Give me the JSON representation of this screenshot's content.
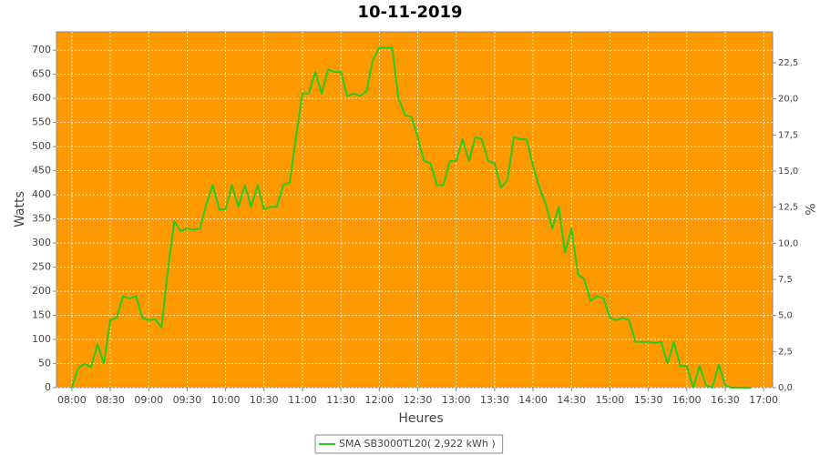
{
  "chart_data": {
    "type": "line",
    "title": "10-11-2019",
    "x_label": "Heures",
    "y_label": "Watts",
    "y2_label": "%",
    "x": [
      "08:00",
      "08:05",
      "08:10",
      "08:15",
      "08:20",
      "08:25",
      "08:30",
      "08:35",
      "08:40",
      "08:45",
      "08:50",
      "08:55",
      "09:00",
      "09:05",
      "09:10",
      "09:15",
      "09:20",
      "09:25",
      "09:30",
      "09:35",
      "09:40",
      "09:45",
      "09:50",
      "09:55",
      "10:00",
      "10:05",
      "10:10",
      "10:15",
      "10:20",
      "10:25",
      "10:30",
      "10:35",
      "10:40",
      "10:45",
      "10:50",
      "10:55",
      "11:00",
      "11:05",
      "11:10",
      "11:15",
      "11:20",
      "11:25",
      "11:30",
      "11:35",
      "11:40",
      "11:45",
      "11:50",
      "11:55",
      "12:00",
      "12:05",
      "12:10",
      "12:15",
      "12:20",
      "12:25",
      "12:30",
      "12:35",
      "12:40",
      "12:45",
      "12:50",
      "12:55",
      "13:00",
      "13:05",
      "13:10",
      "13:15",
      "13:20",
      "13:25",
      "13:30",
      "13:35",
      "13:40",
      "13:45",
      "13:50",
      "13:55",
      "14:00",
      "14:05",
      "14:10",
      "14:15",
      "14:20",
      "14:25",
      "14:30",
      "14:35",
      "14:40",
      "14:45",
      "14:50",
      "14:55",
      "15:00",
      "15:05",
      "15:10",
      "15:15",
      "15:20",
      "15:25",
      "15:30",
      "15:35",
      "15:40",
      "15:45",
      "15:50",
      "15:55",
      "16:00",
      "16:05",
      "16:10",
      "16:15",
      "16:20",
      "16:25",
      "16:30",
      "16:35",
      "16:40",
      "16:45",
      "16:50"
    ],
    "series": [
      {
        "name": "SMA SB3000TL20( 2,922 kWh )",
        "color": "#22cc22",
        "values": [
          0,
          40,
          50,
          42,
          90,
          50,
          140,
          145,
          190,
          185,
          190,
          145,
          140,
          142,
          125,
          245,
          345,
          325,
          330,
          328,
          330,
          380,
          420,
          370,
          370,
          420,
          375,
          420,
          375,
          420,
          370,
          375,
          375,
          420,
          425,
          520,
          610,
          610,
          655,
          610,
          660,
          655,
          655,
          605,
          610,
          605,
          615,
          680,
          705,
          705,
          705,
          600,
          565,
          562,
          520,
          470,
          465,
          420,
          420,
          470,
          470,
          515,
          470,
          520,
          515,
          470,
          465,
          415,
          430,
          520,
          515,
          515,
          460,
          415,
          380,
          330,
          375,
          280,
          330,
          235,
          225,
          180,
          190,
          185,
          145,
          140,
          145,
          140,
          95,
          95,
          95,
          93,
          95,
          50,
          95,
          45,
          45,
          0,
          45,
          5,
          0,
          48,
          5,
          0,
          0,
          0,
          0
        ]
      }
    ],
    "xlim": [
      "07:48",
      "17:07"
    ],
    "xticks": [
      "08:00",
      "08:30",
      "09:00",
      "09:30",
      "10:00",
      "10:30",
      "11:00",
      "11:30",
      "12:00",
      "12:30",
      "13:00",
      "13:30",
      "14:00",
      "14:30",
      "15:00",
      "15:30",
      "16:00",
      "16:30",
      "17:00"
    ],
    "ylim": [
      0,
      738
    ],
    "yticks": [
      0,
      50,
      100,
      150,
      200,
      250,
      300,
      350,
      400,
      450,
      500,
      550,
      600,
      650,
      700
    ],
    "y2lim": [
      0,
      24.64
    ],
    "y2ticks": [
      {
        "value": 0,
        "label": "0,0"
      },
      {
        "value": 2.5,
        "label": "2,5"
      },
      {
        "value": 5,
        "label": "5,0"
      },
      {
        "value": 7.5,
        "label": "7,5"
      },
      {
        "value": 10,
        "label": "10,0"
      },
      {
        "value": 12.5,
        "label": "12,5"
      },
      {
        "value": 15,
        "label": "15,0"
      },
      {
        "value": 17.5,
        "label": "17,5"
      },
      {
        "value": 20,
        "label": "20,0"
      },
      {
        "value": 22.5,
        "label": "22,5"
      }
    ],
    "grid": true,
    "plot_background": "#ff9900",
    "legend": "bottom"
  }
}
